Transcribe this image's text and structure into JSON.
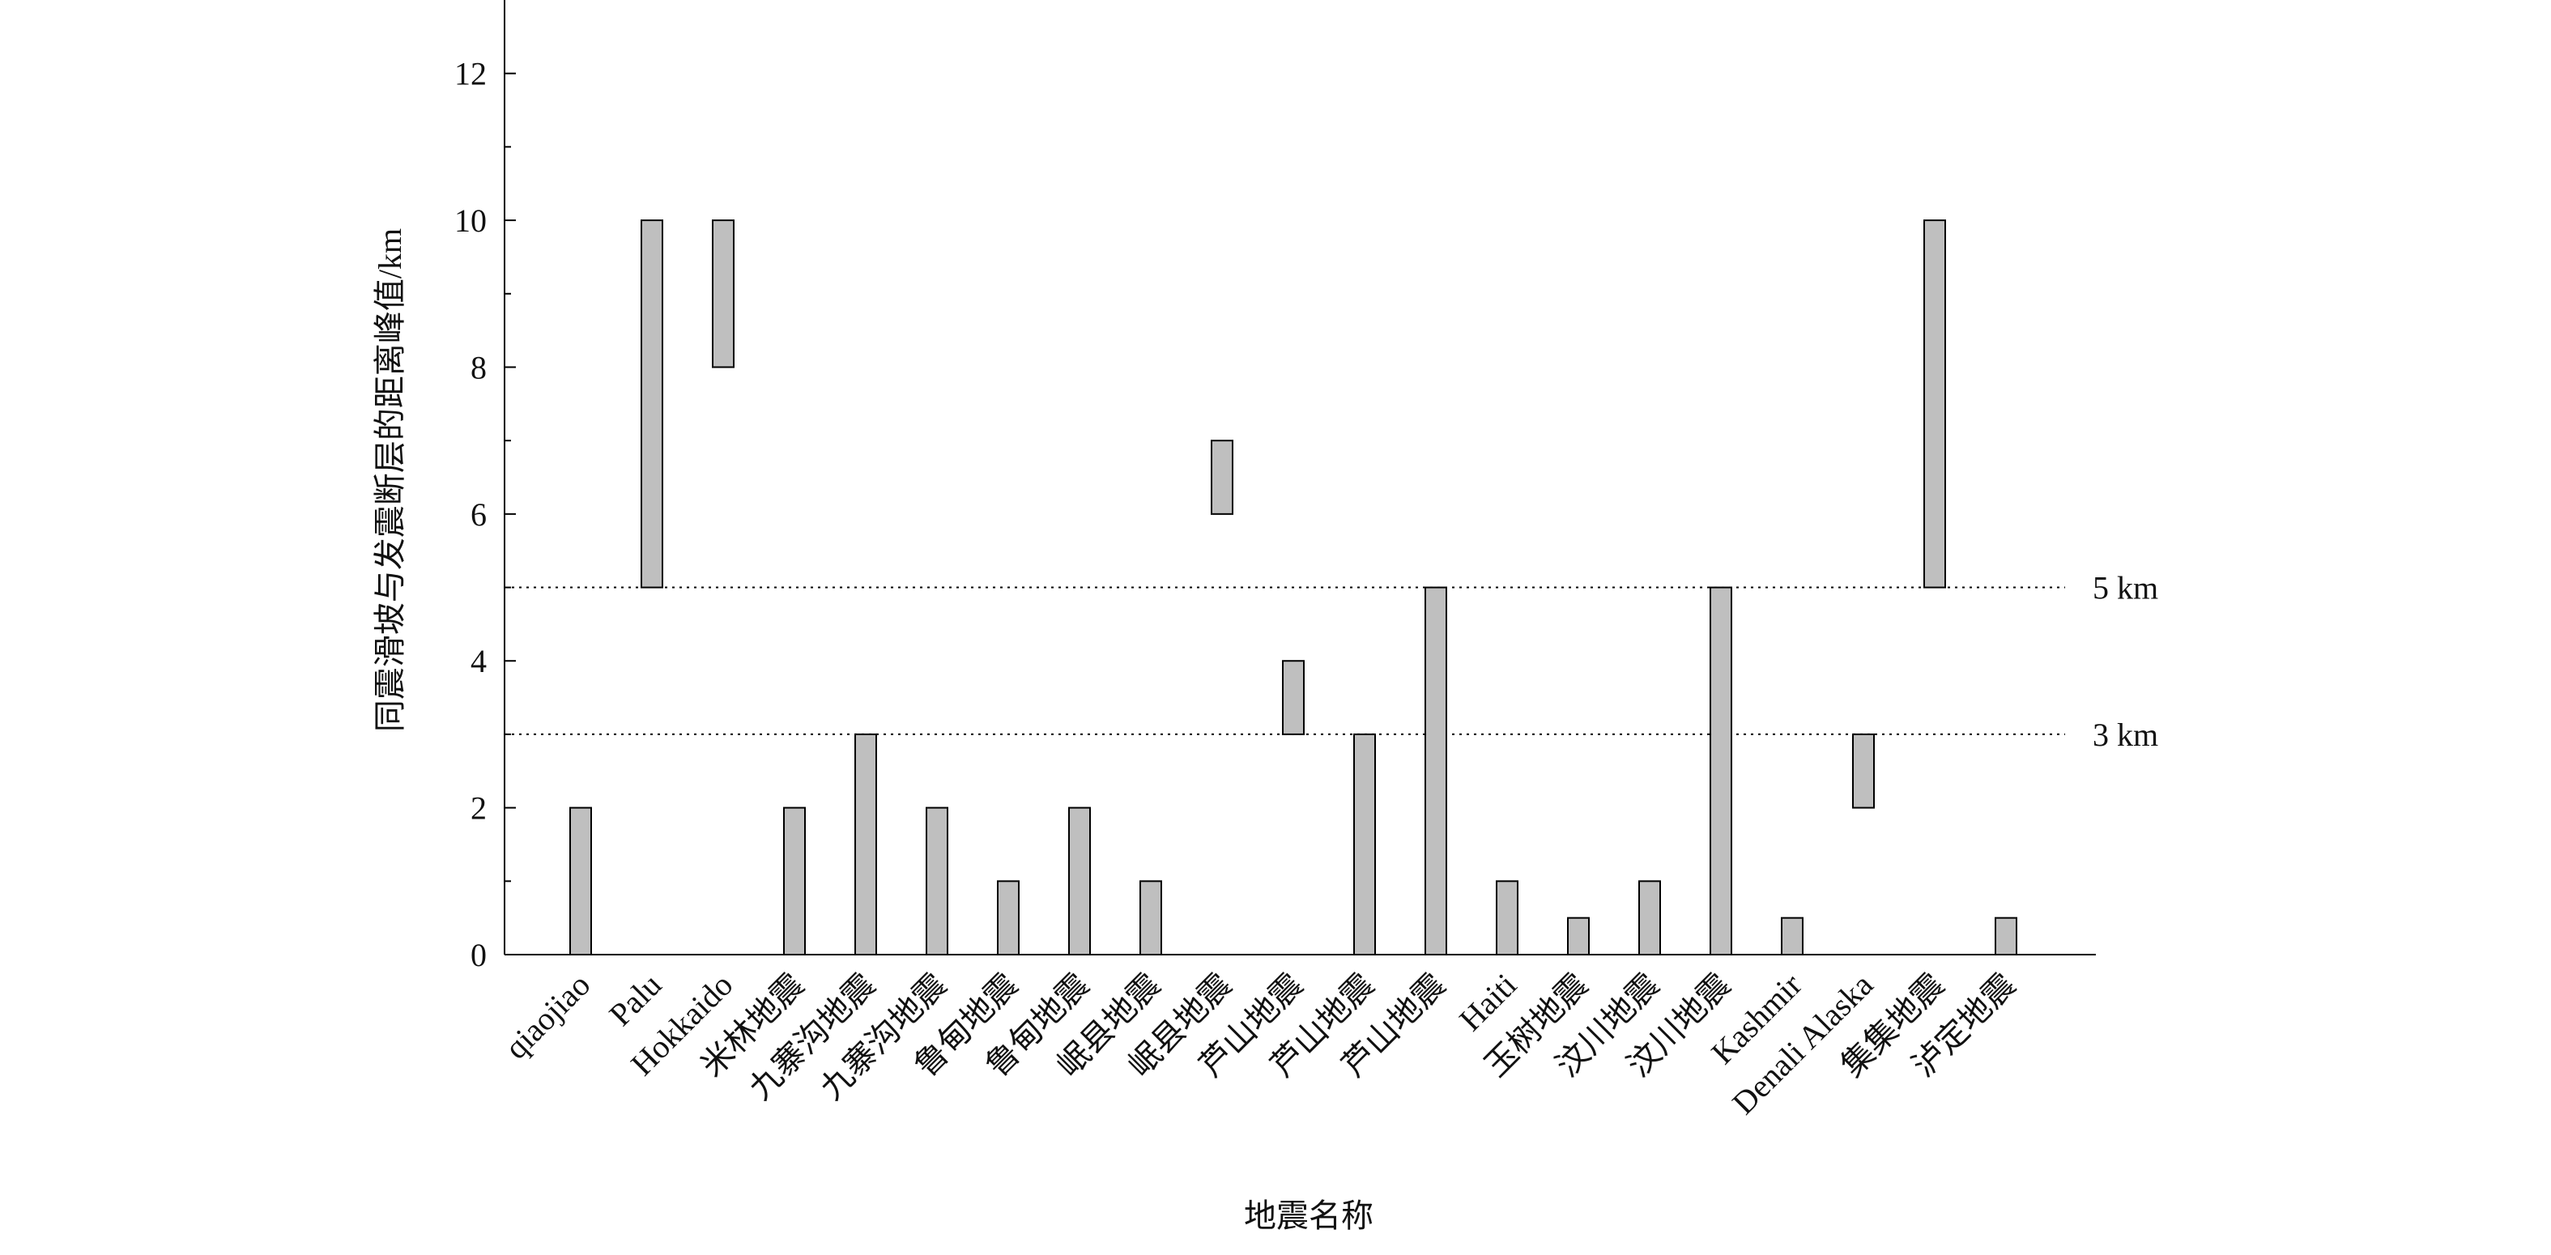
{
  "chart_data": {
    "type": "range_bar",
    "xlabel": "地震名称",
    "ylabel": "同震滑坡与发震断层的距离峰值/km",
    "categories": [
      "qiaojiao",
      "Palu",
      "Hokkaido",
      "米林地震",
      "九寨沟地震",
      "九寨沟地震",
      "鲁甸地震",
      "鲁甸地震",
      "岷县地震",
      "岷县地震",
      "芦山地震",
      "芦山地震",
      "芦山地震",
      "Haiti",
      "玉树地震",
      "汶川地震",
      "汶川地震",
      "Kashmir",
      "Denali Alaska",
      "集集地震",
      "泸定地震"
    ],
    "low": [
      0,
      5,
      8,
      0,
      0,
      0,
      0,
      0,
      0,
      6,
      3,
      0,
      0,
      0,
      0,
      0,
      0,
      0,
      2,
      5,
      0
    ],
    "high": [
      2,
      10,
      10,
      2,
      3,
      2,
      1,
      2,
      1,
      7,
      4,
      3,
      5,
      1,
      0.5,
      1,
      5,
      0.5,
      3,
      10,
      0.5
    ],
    "color": "#bfbfbf",
    "ylim": [
      0,
      13
    ],
    "yticks": [
      0,
      2,
      4,
      6,
      8,
      10,
      12
    ],
    "yminorticks": [
      1,
      3,
      5,
      7,
      9,
      11
    ],
    "ref_lines": [
      {
        "value": 5,
        "label": "5 km"
      },
      {
        "value": 3,
        "label": "3 km"
      }
    ]
  }
}
